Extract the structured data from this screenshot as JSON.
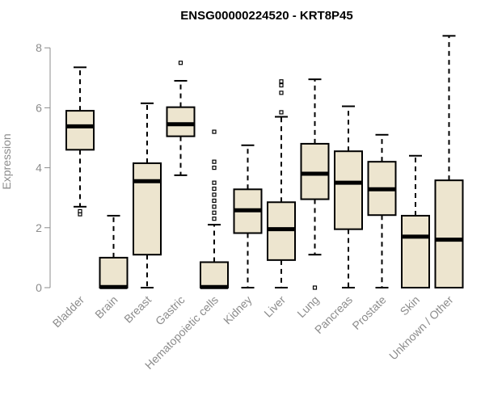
{
  "chart_data": {
    "type": "boxplot",
    "title": "ENSG00000224520 - KRT8P45",
    "xlabel": "",
    "ylabel": "Expression",
    "ylim": [
      0,
      8.4
    ],
    "yticks": [
      0,
      2,
      4,
      6,
      8
    ],
    "box_color": "#ede5cf",
    "categories": [
      "Bladder",
      "Brain",
      "Breast",
      "Gastric",
      "Hematopoietic cells",
      "Kidney",
      "Liver",
      "Lung",
      "Pancreas",
      "Prostate",
      "Skin",
      "Unknown / Other"
    ],
    "boxes": [
      {
        "category": "Bladder",
        "whisker_low": 2.7,
        "q1": 4.6,
        "median": 5.38,
        "q3": 5.9,
        "whisker_high": 7.35,
        "outliers": [
          2.45,
          2.55
        ]
      },
      {
        "category": "Brain",
        "whisker_low": 0.0,
        "q1": 0.0,
        "median": 0.02,
        "q3": 1.0,
        "whisker_high": 2.4,
        "outliers": []
      },
      {
        "category": "Breast",
        "whisker_low": 0.0,
        "q1": 1.1,
        "median": 3.55,
        "q3": 4.15,
        "whisker_high": 6.15,
        "outliers": []
      },
      {
        "category": "Gastric",
        "whisker_low": 3.75,
        "q1": 5.05,
        "median": 5.45,
        "q3": 6.02,
        "whisker_high": 6.9,
        "outliers": [
          7.5
        ]
      },
      {
        "category": "Hematopoietic cells",
        "whisker_low": 0.0,
        "q1": 0.0,
        "median": 0.02,
        "q3": 0.85,
        "whisker_high": 2.1,
        "outliers": [
          2.3,
          2.5,
          2.7,
          2.9,
          3.1,
          3.3,
          3.5,
          4.0,
          4.2,
          5.2
        ]
      },
      {
        "category": "Kidney",
        "whisker_low": 0.0,
        "q1": 1.82,
        "median": 2.58,
        "q3": 3.28,
        "whisker_high": 4.75,
        "outliers": []
      },
      {
        "category": "Liver",
        "whisker_low": 0.0,
        "q1": 0.92,
        "median": 1.95,
        "q3": 2.85,
        "whisker_high": 5.7,
        "outliers": [
          5.85,
          6.5,
          6.75,
          6.88
        ]
      },
      {
        "category": "Lung",
        "whisker_low": 1.1,
        "q1": 2.95,
        "median": 3.8,
        "q3": 4.8,
        "whisker_high": 6.95,
        "outliers": [
          0.0
        ]
      },
      {
        "category": "Pancreas",
        "whisker_low": 0.0,
        "q1": 1.95,
        "median": 3.5,
        "q3": 4.55,
        "whisker_high": 6.05,
        "outliers": []
      },
      {
        "category": "Prostate",
        "whisker_low": 0.0,
        "q1": 2.42,
        "median": 3.28,
        "q3": 4.2,
        "whisker_high": 5.1,
        "outliers": []
      },
      {
        "category": "Skin",
        "whisker_low": 0.0,
        "q1": 0.0,
        "median": 1.7,
        "q3": 2.4,
        "whisker_high": 4.4,
        "outliers": []
      },
      {
        "category": "Unknown / Other",
        "whisker_low": 0.0,
        "q1": 0.0,
        "median": 1.6,
        "q3": 3.58,
        "whisker_high": 8.4,
        "outliers": []
      }
    ]
  }
}
